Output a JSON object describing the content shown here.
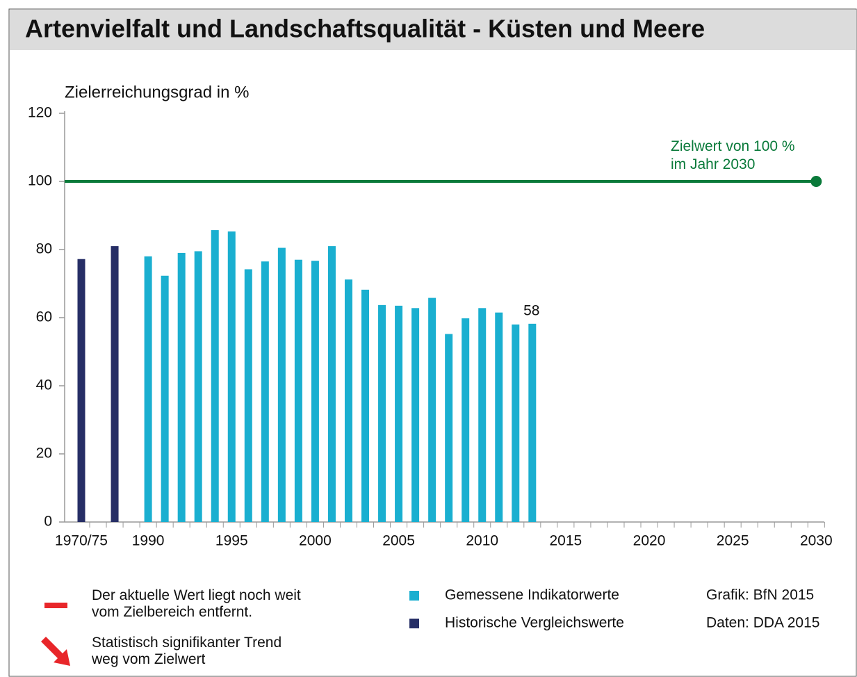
{
  "chart_data": {
    "type": "bar",
    "title": "Artenvielfalt und Landschaftsqualität - Küsten und Meere",
    "y_label": "Zielerreichungsgrad in %",
    "categories": [
      "1970/75",
      null,
      null,
      null,
      "1990",
      null,
      null,
      null,
      null,
      "1995",
      null,
      null,
      null,
      null,
      "2000",
      null,
      null,
      null,
      null,
      "2005",
      null,
      null,
      null,
      null,
      "2010",
      null,
      null,
      null,
      null,
      "2015",
      null,
      null,
      null,
      null,
      "2020",
      null,
      null,
      null,
      null,
      "2025",
      null,
      null,
      null,
      null,
      "2030"
    ],
    "series": [
      {
        "name": "Gemessene Indikatorwerte",
        "color": "#1aafd0",
        "values": [
          null,
          null,
          null,
          null,
          78,
          72.3,
          79,
          79.5,
          85.7,
          85.3,
          74.2,
          76.5,
          80.5,
          77,
          76.7,
          81,
          71.2,
          68.2,
          63.7,
          63.5,
          62.8,
          65.8,
          55.2,
          59.8,
          62.8,
          61.5,
          58,
          58.2,
          null,
          null,
          null,
          null,
          null,
          null,
          null,
          null,
          null,
          null,
          null,
          null,
          null,
          null,
          null,
          null,
          null
        ],
        "value_labels": [
          null,
          null,
          null,
          null,
          null,
          null,
          null,
          null,
          null,
          null,
          null,
          null,
          null,
          null,
          null,
          null,
          null,
          null,
          null,
          null,
          null,
          null,
          null,
          null,
          null,
          null,
          null,
          "58",
          null,
          null,
          null,
          null,
          null,
          null,
          null,
          null,
          null,
          null,
          null,
          null,
          null,
          null,
          null,
          null,
          null
        ]
      },
      {
        "name": "Historische Vergleichswerte",
        "color": "#262e66",
        "values": [
          77.2,
          null,
          81,
          null,
          null,
          null,
          null,
          null,
          null,
          null,
          null,
          null,
          null,
          null,
          null,
          null,
          null,
          null,
          null,
          null,
          null,
          null,
          null,
          null,
          null,
          null,
          null,
          null,
          null,
          null,
          null,
          null,
          null,
          null,
          null,
          null,
          null,
          null,
          null,
          null,
          null,
          null,
          null,
          null,
          null
        ]
      }
    ],
    "ylim": [
      0,
      120
    ],
    "yticks": [
      0,
      20,
      40,
      60,
      80,
      100,
      120
    ],
    "target": {
      "value": 100,
      "text": [
        "Zielwert von 100 %",
        "im Jahr 2030"
      ],
      "color": "#0a7a3a"
    },
    "status_notes": [
      {
        "text": [
          "Der aktuelle Wert liegt noch weit",
          "vom Zielbereich entfernt."
        ],
        "color": "#e8262a"
      },
      {
        "text": [
          "Statistisch signifikanter Trend",
          "weg vom Zielwert"
        ],
        "color": "#e8262a"
      }
    ],
    "credits": [
      "Grafik: BfN 2015",
      "Daten: DDA 2015"
    ]
  }
}
